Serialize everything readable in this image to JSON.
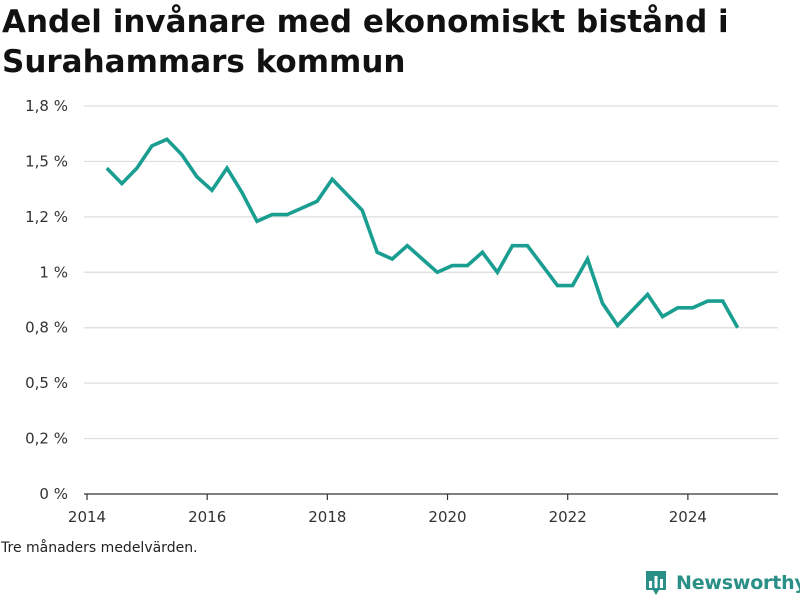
{
  "title": "Andel invånare med ekonomiskt bistånd i Surahammars kommun",
  "footnote": "Tre månaders medelvärden.",
  "brand": "Newsworthy",
  "colors": {
    "line": "#1a9e91",
    "grid": "#dddddd",
    "axis": "#333333",
    "brand": "#2a8f86"
  },
  "chart_data": {
    "type": "line",
    "title": "Andel invånare med ekonomiskt bistånd i Surahammars kommun",
    "xlabel": "",
    "ylabel": "",
    "xlim": [
      2013.95,
      2025.5
    ],
    "ylim": [
      0,
      1.75
    ],
    "grid": true,
    "legend": "none",
    "x_ticks": [
      2014,
      2016,
      2018,
      2020,
      2022,
      2024
    ],
    "y_ticks": [
      {
        "value": 0,
        "label": "0 %"
      },
      {
        "value": 0.25,
        "label": "0,2 %"
      },
      {
        "value": 0.5,
        "label": "0,5 %"
      },
      {
        "value": 0.75,
        "label": "0,8 %"
      },
      {
        "value": 1.0,
        "label": "1 %"
      },
      {
        "value": 1.25,
        "label": "1,2 %"
      },
      {
        "value": 1.5,
        "label": "1,5 %"
      },
      {
        "value": 1.75,
        "label": "1,8 %"
      }
    ],
    "series": [
      {
        "x": [
          2014.33,
          2014.58,
          2014.83,
          2015.08,
          2015.33,
          2015.58,
          2015.83,
          2016.08,
          2016.33,
          2016.58,
          2016.83,
          2017.08,
          2017.33,
          2017.58,
          2017.83,
          2018.08,
          2018.33,
          2018.58,
          2018.83,
          2019.08,
          2019.33,
          2019.58,
          2019.83,
          2020.08,
          2020.33,
          2020.58,
          2020.83,
          2021.08,
          2021.33,
          2021.58,
          2021.83,
          2022.08,
          2022.33,
          2022.58,
          2022.83,
          2023.08,
          2023.33,
          2023.58,
          2023.83,
          2024.08,
          2024.33,
          2024.58,
          2024.83
        ],
        "values": [
          1.47,
          1.4,
          1.47,
          1.57,
          1.6,
          1.53,
          1.43,
          1.37,
          1.47,
          1.36,
          1.23,
          1.26,
          1.26,
          1.29,
          1.32,
          1.42,
          1.35,
          1.28,
          1.09,
          1.06,
          1.12,
          1.06,
          1.0,
          1.03,
          1.03,
          1.09,
          1.0,
          1.12,
          1.12,
          1.03,
          0.94,
          0.94,
          1.06,
          0.86,
          0.76,
          0.83,
          0.9,
          0.8,
          0.84,
          0.84,
          0.87,
          0.87,
          0.75
        ]
      }
    ]
  }
}
